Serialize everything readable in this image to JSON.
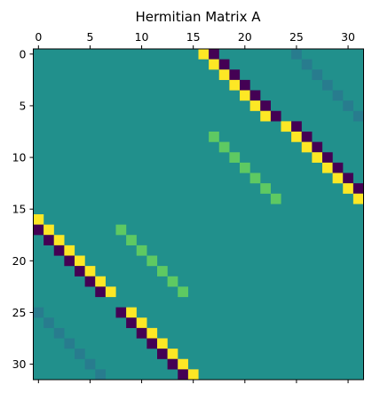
{
  "chart_data": {
    "type": "heatmap",
    "title": "Hermitian Matrix A",
    "size": 32,
    "x_ticks": [
      0,
      5,
      10,
      15,
      20,
      25,
      30
    ],
    "y_ticks": [
      0,
      5,
      10,
      15,
      20,
      25,
      30
    ],
    "x_axis_position": "top",
    "colormap": "viridis",
    "colors": {
      "background": "#21908c",
      "highest": "#fde725",
      "lowest": "#440154",
      "high_mid": "#5ec962",
      "low_mid": "#287c8e"
    },
    "value_scale": [
      -1,
      1
    ],
    "background_value": 0,
    "cells": [
      {
        "row": 0,
        "col": 16,
        "value": 1
      },
      {
        "row": 0,
        "col": 17,
        "value": -1
      },
      {
        "row": 1,
        "col": 17,
        "value": 1
      },
      {
        "row": 1,
        "col": 18,
        "value": -1
      },
      {
        "row": 2,
        "col": 18,
        "value": 1
      },
      {
        "row": 2,
        "col": 19,
        "value": -1
      },
      {
        "row": 3,
        "col": 19,
        "value": 1
      },
      {
        "row": 3,
        "col": 20,
        "value": -1
      },
      {
        "row": 4,
        "col": 20,
        "value": 1
      },
      {
        "row": 4,
        "col": 21,
        "value": -1
      },
      {
        "row": 5,
        "col": 21,
        "value": 1
      },
      {
        "row": 5,
        "col": 22,
        "value": -1
      },
      {
        "row": 6,
        "col": 22,
        "value": 1
      },
      {
        "row": 6,
        "col": 23,
        "value": -1
      },
      {
        "row": 7,
        "col": 24,
        "value": 1
      },
      {
        "row": 7,
        "col": 25,
        "value": -1
      },
      {
        "row": 8,
        "col": 25,
        "value": 1
      },
      {
        "row": 8,
        "col": 26,
        "value": -1
      },
      {
        "row": 9,
        "col": 26,
        "value": 1
      },
      {
        "row": 9,
        "col": 27,
        "value": -1
      },
      {
        "row": 10,
        "col": 27,
        "value": 1
      },
      {
        "row": 10,
        "col": 28,
        "value": -1
      },
      {
        "row": 11,
        "col": 28,
        "value": 1
      },
      {
        "row": 11,
        "col": 29,
        "value": -1
      },
      {
        "row": 12,
        "col": 29,
        "value": 1
      },
      {
        "row": 12,
        "col": 30,
        "value": -1
      },
      {
        "row": 13,
        "col": 30,
        "value": 1
      },
      {
        "row": 13,
        "col": 31,
        "value": -1
      },
      {
        "row": 14,
        "col": 31,
        "value": 1
      },
      {
        "row": 16,
        "col": 0,
        "value": 1
      },
      {
        "row": 17,
        "col": 0,
        "value": -1
      },
      {
        "row": 17,
        "col": 1,
        "value": 1
      },
      {
        "row": 18,
        "col": 1,
        "value": -1
      },
      {
        "row": 18,
        "col": 2,
        "value": 1
      },
      {
        "row": 19,
        "col": 2,
        "value": -1
      },
      {
        "row": 19,
        "col": 3,
        "value": 1
      },
      {
        "row": 20,
        "col": 3,
        "value": -1
      },
      {
        "row": 20,
        "col": 4,
        "value": 1
      },
      {
        "row": 21,
        "col": 4,
        "value": -1
      },
      {
        "row": 21,
        "col": 5,
        "value": 1
      },
      {
        "row": 22,
        "col": 5,
        "value": -1
      },
      {
        "row": 22,
        "col": 6,
        "value": 1
      },
      {
        "row": 23,
        "col": 6,
        "value": -1
      },
      {
        "row": 23,
        "col": 7,
        "value": 1
      },
      {
        "row": 25,
        "col": 8,
        "value": -1
      },
      {
        "row": 25,
        "col": 9,
        "value": 1
      },
      {
        "row": 26,
        "col": 9,
        "value": -1
      },
      {
        "row": 26,
        "col": 10,
        "value": 1
      },
      {
        "row": 27,
        "col": 10,
        "value": -1
      },
      {
        "row": 27,
        "col": 11,
        "value": 1
      },
      {
        "row": 28,
        "col": 11,
        "value": -1
      },
      {
        "row": 28,
        "col": 12,
        "value": 1
      },
      {
        "row": 29,
        "col": 12,
        "value": -1
      },
      {
        "row": 29,
        "col": 13,
        "value": 1
      },
      {
        "row": 30,
        "col": 13,
        "value": -1
      },
      {
        "row": 30,
        "col": 14,
        "value": 1
      },
      {
        "row": 31,
        "col": 14,
        "value": -1
      },
      {
        "row": 31,
        "col": 15,
        "value": 1
      },
      {
        "row": 8,
        "col": 17,
        "value": 0.7
      },
      {
        "row": 9,
        "col": 18,
        "value": 0.7
      },
      {
        "row": 10,
        "col": 19,
        "value": 0.7
      },
      {
        "row": 11,
        "col": 20,
        "value": 0.7
      },
      {
        "row": 12,
        "col": 21,
        "value": 0.7
      },
      {
        "row": 13,
        "col": 22,
        "value": 0.7
      },
      {
        "row": 14,
        "col": 23,
        "value": 0.7
      },
      {
        "row": 17,
        "col": 8,
        "value": 0.7
      },
      {
        "row": 18,
        "col": 9,
        "value": 0.7
      },
      {
        "row": 19,
        "col": 10,
        "value": 0.7
      },
      {
        "row": 20,
        "col": 11,
        "value": 0.7
      },
      {
        "row": 21,
        "col": 12,
        "value": 0.7
      },
      {
        "row": 22,
        "col": 13,
        "value": 0.7
      },
      {
        "row": 23,
        "col": 14,
        "value": 0.7
      },
      {
        "row": 0,
        "col": 25,
        "value": -0.2
      },
      {
        "row": 1,
        "col": 26,
        "value": -0.2
      },
      {
        "row": 2,
        "col": 27,
        "value": -0.2
      },
      {
        "row": 3,
        "col": 28,
        "value": -0.2
      },
      {
        "row": 4,
        "col": 29,
        "value": -0.2
      },
      {
        "row": 5,
        "col": 30,
        "value": -0.2
      },
      {
        "row": 6,
        "col": 31,
        "value": -0.2
      },
      {
        "row": 25,
        "col": 0,
        "value": -0.2
      },
      {
        "row": 26,
        "col": 1,
        "value": -0.2
      },
      {
        "row": 27,
        "col": 2,
        "value": -0.2
      },
      {
        "row": 28,
        "col": 3,
        "value": -0.2
      },
      {
        "row": 29,
        "col": 4,
        "value": -0.2
      },
      {
        "row": 30,
        "col": 5,
        "value": -0.2
      },
      {
        "row": 31,
        "col": 6,
        "value": -0.2
      }
    ]
  }
}
